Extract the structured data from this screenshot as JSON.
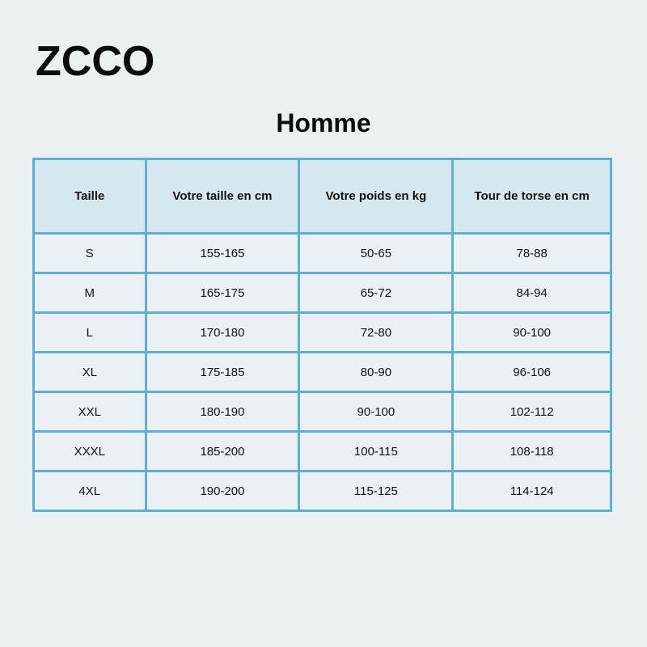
{
  "logo": {
    "text": "ZCCO"
  },
  "title": "Homme",
  "colors": {
    "page_background": "#eaf1f3",
    "table_border": "#5fafd4",
    "header_background": "#d6e8ee",
    "cell_background": "#e9f1f4",
    "text": "#121212"
  },
  "table": {
    "columns": [
      "Taille",
      "Votre taille en cm",
      "Votre poids en kg",
      "Tour de torse en cm"
    ],
    "rows": [
      [
        "S",
        "155-165",
        "50-65",
        "78-88"
      ],
      [
        "M",
        "165-175",
        "65-72",
        "84-94"
      ],
      [
        "L",
        "170-180",
        "72-80",
        "90-100"
      ],
      [
        "XL",
        "175-185",
        "80-90",
        "96-106"
      ],
      [
        "XXL",
        "180-190",
        "90-100",
        "102-112"
      ],
      [
        "XXXL",
        "185-200",
        "100-115",
        "108-118"
      ],
      [
        "4XL",
        "190-200",
        "115-125",
        "114-124"
      ]
    ]
  }
}
